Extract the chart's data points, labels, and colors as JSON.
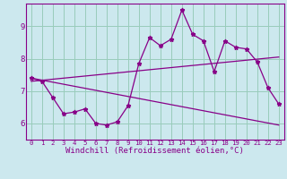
{
  "xlabel": "Windchill (Refroidissement éolien,°C)",
  "bg_color": "#cce8ee",
  "line_color": "#880088",
  "grid_color": "#99ccbb",
  "xlim": [
    -0.5,
    23.5
  ],
  "ylim": [
    5.5,
    9.7
  ],
  "yticks": [
    6,
    7,
    8,
    9
  ],
  "xticks": [
    0,
    1,
    2,
    3,
    4,
    5,
    6,
    7,
    8,
    9,
    10,
    11,
    12,
    13,
    14,
    15,
    16,
    17,
    18,
    19,
    20,
    21,
    22,
    23
  ],
  "series1_x": [
    0,
    1,
    2,
    3,
    4,
    5,
    6,
    7,
    8,
    9,
    10,
    11,
    12,
    13,
    14,
    15,
    16,
    17,
    18,
    19,
    20,
    21,
    22,
    23
  ],
  "series1_y": [
    7.4,
    7.3,
    6.8,
    6.3,
    6.35,
    6.45,
    6.0,
    5.95,
    6.05,
    6.55,
    7.85,
    8.65,
    8.4,
    8.6,
    9.5,
    8.75,
    8.55,
    7.6,
    8.55,
    8.35,
    8.3,
    7.9,
    7.1,
    6.6
  ],
  "trend1_x": [
    0,
    23
  ],
  "trend1_y": [
    7.3,
    8.05
  ],
  "trend2_x": [
    0,
    23
  ],
  "trend2_y": [
    7.4,
    5.95
  ],
  "figsize": [
    3.2,
    2.0
  ],
  "dpi": 100,
  "xtick_fontsize": 5.2,
  "ytick_fontsize": 6.5,
  "xlabel_fontsize": 6.5
}
